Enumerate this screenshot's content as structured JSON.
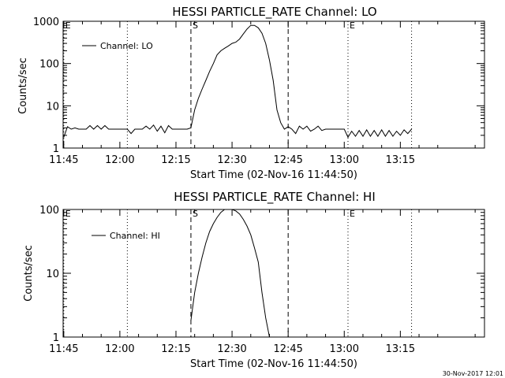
{
  "footer_timestamp": "30-Nov-2017 12:01",
  "chart_data": [
    {
      "type": "line",
      "title": "HESSI PARTICLE_RATE Channel: LO",
      "xlabel": "Start Time (02-Nov-16 11:44:50)",
      "ylabel": "Counts/sec",
      "yscale": "log",
      "ylim": [
        1,
        1000
      ],
      "xlim_minutes_since_11_45": [
        -0.17,
        112.5
      ],
      "x_ticks": [
        "11:45",
        "12:00",
        "12:15",
        "12:30",
        "12:45",
        "13:00",
        "13:15"
      ],
      "y_ticks": [
        "1",
        "10",
        "100",
        "1000"
      ],
      "legend": {
        "label": "Channel: LO",
        "position": "top-left"
      },
      "markers": [
        {
          "label": "E",
          "time": "11:45",
          "style": "dotted"
        },
        {
          "label": "",
          "time": "12:02",
          "style": "dotted"
        },
        {
          "label": "S",
          "time": "12:19",
          "style": "dashed"
        },
        {
          "label": "",
          "time": "12:45",
          "style": "dashed"
        },
        {
          "label": "E",
          "time": "13:01",
          "style": "dotted"
        },
        {
          "label": "",
          "time": "13:18",
          "style": "dotted"
        }
      ],
      "series": [
        {
          "name": "Channel: LO",
          "x": [
            "11:45",
            "11:46",
            "11:47",
            "11:48",
            "11:49",
            "11:50",
            "11:51",
            "11:52",
            "11:53",
            "11:54",
            "11:55",
            "11:56",
            "11:57",
            "11:58",
            "11:59",
            "12:00",
            "12:01",
            "12:02",
            "12:03",
            "12:04",
            "12:05",
            "12:06",
            "12:07",
            "12:08",
            "12:09",
            "12:10",
            "12:11",
            "12:12",
            "12:13",
            "12:14",
            "12:15",
            "12:16",
            "12:17",
            "12:18",
            "12:19",
            "12:20",
            "12:21",
            "12:22",
            "12:23",
            "12:24",
            "12:25",
            "12:26",
            "12:27",
            "12:28",
            "12:29",
            "12:30",
            "12:31",
            "12:32",
            "12:33",
            "12:34",
            "12:35",
            "12:36",
            "12:37",
            "12:38",
            "12:39",
            "12:40",
            "12:41",
            "12:42",
            "12:43",
            "12:44",
            "12:45",
            "12:46",
            "12:47",
            "12:48",
            "12:49",
            "12:50",
            "12:51",
            "12:52",
            "12:53",
            "12:54",
            "12:55",
            "12:56",
            "12:57",
            "12:58",
            "12:59",
            "13:00",
            "13:01",
            "13:02",
            "13:03",
            "13:04",
            "13:05",
            "13:06",
            "13:07",
            "13:08",
            "13:09",
            "13:10",
            "13:11",
            "13:12",
            "13:13",
            "13:14",
            "13:15",
            "13:16",
            "13:17",
            "13:18"
          ],
          "y": [
            1.8,
            3.2,
            2.8,
            3.0,
            2.8,
            2.8,
            2.8,
            3.4,
            2.8,
            3.4,
            2.8,
            3.4,
            2.8,
            2.8,
            2.8,
            2.8,
            2.8,
            2.8,
            2.2,
            2.8,
            2.8,
            2.8,
            3.3,
            2.8,
            3.5,
            2.5,
            3.3,
            2.3,
            3.4,
            2.8,
            2.8,
            2.8,
            2.8,
            2.8,
            3.0,
            8.0,
            15,
            25,
            40,
            65,
            100,
            160,
            200,
            230,
            260,
            300,
            320,
            380,
            500,
            650,
            800,
            800,
            700,
            520,
            300,
            120,
            40,
            8.0,
            4.0,
            2.8,
            3.2,
            2.8,
            2.2,
            3.3,
            2.8,
            3.3,
            2.5,
            2.8,
            3.3,
            2.6,
            2.8,
            2.8,
            2.8,
            2.8,
            2.8,
            2.8,
            1.8,
            2.5,
            1.9,
            2.6,
            1.9,
            2.7,
            1.9,
            2.6,
            1.9,
            2.7,
            1.9,
            2.6,
            1.9,
            2.5,
            2.0,
            2.7,
            2.2,
            2.8
          ]
        }
      ]
    },
    {
      "type": "line",
      "title": "HESSI PARTICLE_RATE Channel: HI",
      "xlabel": "Start Time (02-Nov-16 11:44:50)",
      "ylabel": "Counts/sec",
      "yscale": "log",
      "ylim": [
        1,
        100
      ],
      "xlim_minutes_since_11_45": [
        -0.17,
        112.5
      ],
      "x_ticks": [
        "11:45",
        "12:00",
        "12:15",
        "12:30",
        "12:45",
        "13:00",
        "13:15"
      ],
      "y_ticks": [
        "1",
        "10",
        "100"
      ],
      "legend": {
        "label": "Channel: HI",
        "position": "top-left"
      },
      "markers": [
        {
          "label": "E",
          "time": "11:45",
          "style": "dotted"
        },
        {
          "label": "",
          "time": "12:02",
          "style": "dotted"
        },
        {
          "label": "S",
          "time": "12:19",
          "style": "dashed"
        },
        {
          "label": "",
          "time": "12:45",
          "style": "dashed"
        },
        {
          "label": "E",
          "time": "13:01",
          "style": "dotted"
        },
        {
          "label": "",
          "time": "13:18",
          "style": "dotted"
        }
      ],
      "series": [
        {
          "name": "Channel: HI",
          "x": [
            "12:19",
            "12:20",
            "12:21",
            "12:22",
            "12:23",
            "12:24",
            "12:25",
            "12:26",
            "12:27",
            "12:28",
            "12:29",
            "12:30",
            "12:31",
            "12:32",
            "12:33",
            "12:34",
            "12:35",
            "12:36",
            "12:37",
            "12:38",
            "12:39",
            "12:40"
          ],
          "y": [
            1.8,
            5,
            10,
            18,
            30,
            45,
            60,
            75,
            90,
            100,
            100,
            100,
            95,
            85,
            70,
            55,
            40,
            25,
            15,
            5,
            2,
            1.0
          ]
        }
      ]
    }
  ]
}
